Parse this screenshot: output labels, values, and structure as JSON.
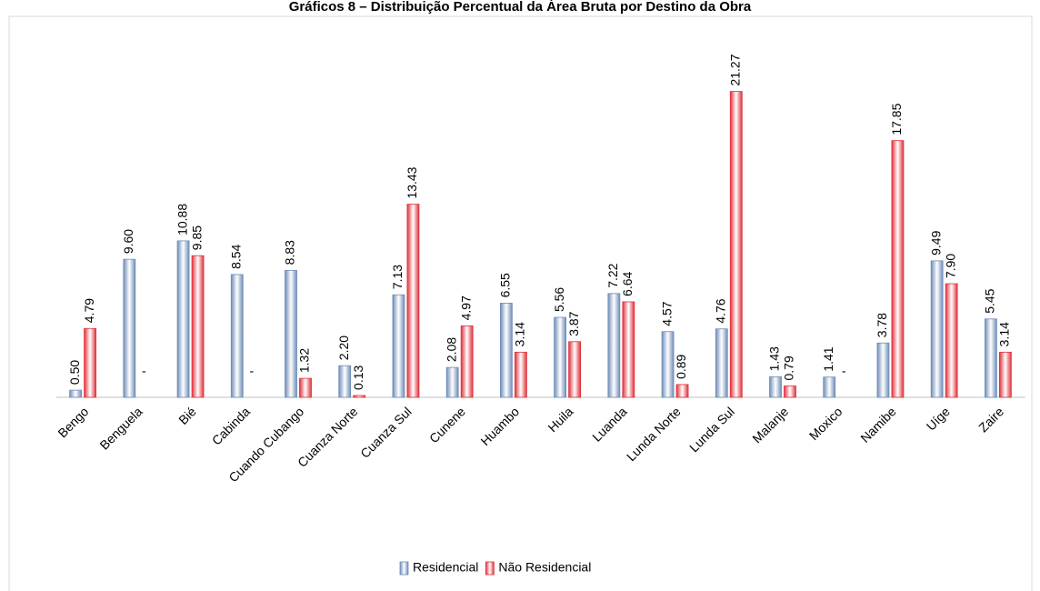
{
  "chart_data": {
    "type": "bar",
    "title": "Gráficos 8 – Distribuição Percentual da Área Bruta por Destino da Obra",
    "categories": [
      "Bengo",
      "Benguela",
      "Bié",
      "Cabinda",
      "Cuando Cubango",
      "Cuanza Norte",
      "Cuanza Sul",
      "Cunene",
      "Huambo",
      "Huila",
      "Luanda",
      "Lunda Norte",
      "Lunda Sul",
      "Malanje",
      "Moxico",
      "Namibe",
      "Uíge",
      "Zaire"
    ],
    "series": [
      {
        "name": "Residencial",
        "color": "#6f8db8",
        "values": [
          0.5,
          9.6,
          10.88,
          8.54,
          8.83,
          2.2,
          7.13,
          2.08,
          6.55,
          5.56,
          7.22,
          4.57,
          4.76,
          1.43,
          1.41,
          3.78,
          9.49,
          5.45
        ],
        "value_labels": [
          "0.50",
          "9.60",
          "10.88",
          "8.54",
          "8.83",
          "2.20",
          "7.13",
          "2.08",
          "6.55",
          "5.56",
          "7.22",
          "4.57",
          "4.76",
          "1.43",
          "1.41",
          "3.78",
          "9.49",
          "5.45"
        ]
      },
      {
        "name": "Não Residencial",
        "color": "#e0303a",
        "values": [
          4.79,
          null,
          9.85,
          null,
          1.32,
          0.13,
          13.43,
          4.97,
          3.14,
          3.87,
          6.64,
          0.89,
          21.27,
          0.79,
          null,
          17.85,
          7.9,
          3.14
        ],
        "value_labels": [
          "4.79",
          "-",
          "9.85",
          "-",
          "1.32",
          "0.13",
          "13.43",
          "4.97",
          "3.14",
          "3.87",
          "6.64",
          "0.89",
          "21.27",
          "0.79",
          "-",
          "17.85",
          "7.90",
          "3.14"
        ]
      }
    ],
    "ylim": [
      0,
      22
    ],
    "legend": "bottom"
  }
}
